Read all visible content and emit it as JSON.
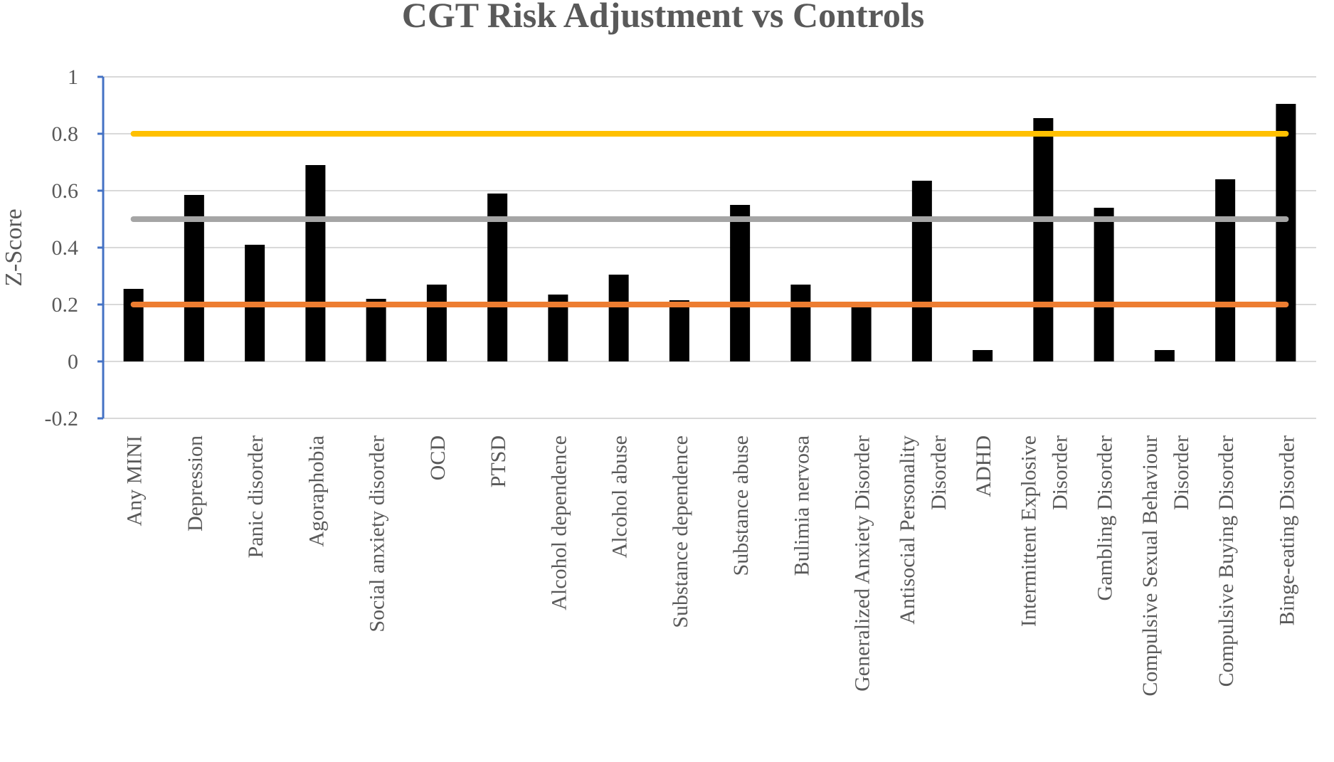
{
  "chart_data": {
    "type": "bar",
    "title": "CGT Risk Adjustment vs Controls",
    "xlabel": "",
    "ylabel": "Z-Score",
    "ylim": [
      -0.2,
      1
    ],
    "yticks": [
      -0.2,
      0,
      0.2,
      0.4,
      0.6,
      0.8,
      1
    ],
    "ytick_labels": [
      "-0.2",
      "0",
      "0.2",
      "0.4",
      "0.6",
      "0.8",
      "1"
    ],
    "grid": true,
    "legend": "none",
    "categories": [
      [
        "Any MINI"
      ],
      [
        "Depression"
      ],
      [
        "Panic disorder"
      ],
      [
        "Agoraphobia"
      ],
      [
        "Social anxiety disorder"
      ],
      [
        "OCD"
      ],
      [
        "PTSD"
      ],
      [
        "Alcohol dependence"
      ],
      [
        "Alcohol abuse"
      ],
      [
        "Substance dependence"
      ],
      [
        "Substance abuse"
      ],
      [
        "Bulimia nervosa"
      ],
      [
        "Generalized Anxiety Disorder"
      ],
      [
        "Antisocial Personality",
        "Disorder"
      ],
      [
        "ADHD"
      ],
      [
        "Intermittent Explosive",
        "Disorder"
      ],
      [
        "Gambling Disorder"
      ],
      [
        "Compulsive Sexual Behaviour",
        "Disorder"
      ],
      [
        "Compulsive Buying Disorder"
      ],
      [
        "Binge-eating Disorder"
      ]
    ],
    "values": [
      0.255,
      0.585,
      0.41,
      0.69,
      0.22,
      0.27,
      0.59,
      0.235,
      0.305,
      0.215,
      0.55,
      0.27,
      0.19,
      0.635,
      0.04,
      0.855,
      0.54,
      0.04,
      0.64,
      0.905
    ],
    "bar_color": "#000000",
    "reference_lines": [
      {
        "value": 0.8,
        "color": "#FFC000"
      },
      {
        "value": 0.5,
        "color": "#A5A5A5"
      },
      {
        "value": 0.2,
        "color": "#ED7D31"
      }
    ],
    "axis_color": "#4472C4",
    "grid_color": "#D9D9D9"
  }
}
